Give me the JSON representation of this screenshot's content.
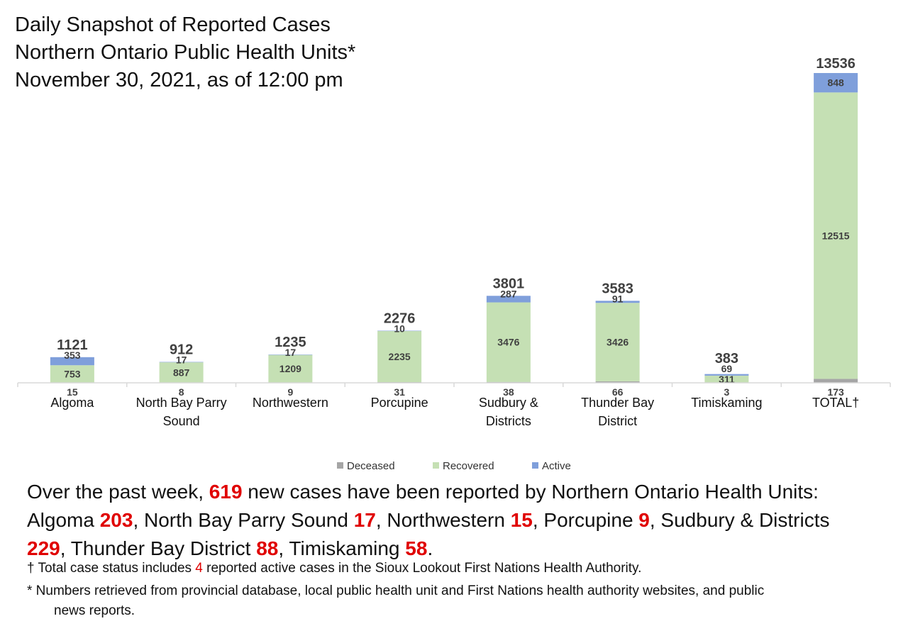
{
  "title": {
    "line1": "Daily Snapshot of Reported Cases",
    "line2": "Northern Ontario Public Health Units*",
    "line3": "November 30, 2021, as of 12:00 pm"
  },
  "chart_data": {
    "type": "bar",
    "stacked": true,
    "categories": [
      "Algoma",
      "North Bay Parry Sound",
      "Northwestern",
      "Porcupine",
      "Sudbury & Districts",
      "Thunder Bay District",
      "Timiskaming",
      "TOTAL†"
    ],
    "category_lines": [
      [
        "Algoma"
      ],
      [
        "North Bay Parry",
        "Sound"
      ],
      [
        "Northwestern"
      ],
      [
        "Porcupine"
      ],
      [
        "Sudbury &",
        "Districts"
      ],
      [
        "Thunder Bay",
        "District"
      ],
      [
        "Timiskaming"
      ],
      [
        "TOTAL†"
      ]
    ],
    "series": [
      {
        "name": "Deceased",
        "color": "#a5a5a5",
        "values": [
          15,
          8,
          9,
          31,
          38,
          66,
          3,
          173
        ]
      },
      {
        "name": "Recovered",
        "color": "#c5e0b4",
        "values": [
          753,
          887,
          1209,
          2235,
          3476,
          3426,
          311,
          12515
        ]
      },
      {
        "name": "Active",
        "color": "#7f9fdb",
        "values": [
          353,
          17,
          17,
          10,
          287,
          91,
          69,
          848
        ]
      }
    ],
    "totals": [
      1121,
      912,
      1235,
      2276,
      3801,
      3583,
      383,
      13536
    ],
    "ylim": [
      0,
      13536
    ],
    "grid": false,
    "legend_position": "bottom"
  },
  "summary": {
    "p1": "Over the past week, ",
    "new_cases": "619",
    "p2": " new cases have been reported by Northern Ontario Health Units:",
    "algoma_label": "Algoma ",
    "algoma": "203",
    "nbps_label": ", North Bay Parry Sound ",
    "nbps": "17",
    "nw_label": ", Northwestern ",
    "nw": "15",
    "porc_label": ", Porcupine ",
    "porc": "9",
    "sud_label": ", Sudbury & Districts",
    "sud": "229",
    "tb_label": ", Thunder Bay District ",
    "tb": "88",
    "tim_label": ", Timiskaming ",
    "tim": "58",
    "end": "."
  },
  "footnotes": {
    "dagger_a": "† Total case status includes ",
    "dagger_num": "4",
    "dagger_b": " reported active cases in the Sioux Lookout First Nations Health Authority.",
    "star_a": "* Numbers retrieved from provincial database, local public health unit and First Nations health authority websites, and public",
    "star_b": "news reports."
  }
}
